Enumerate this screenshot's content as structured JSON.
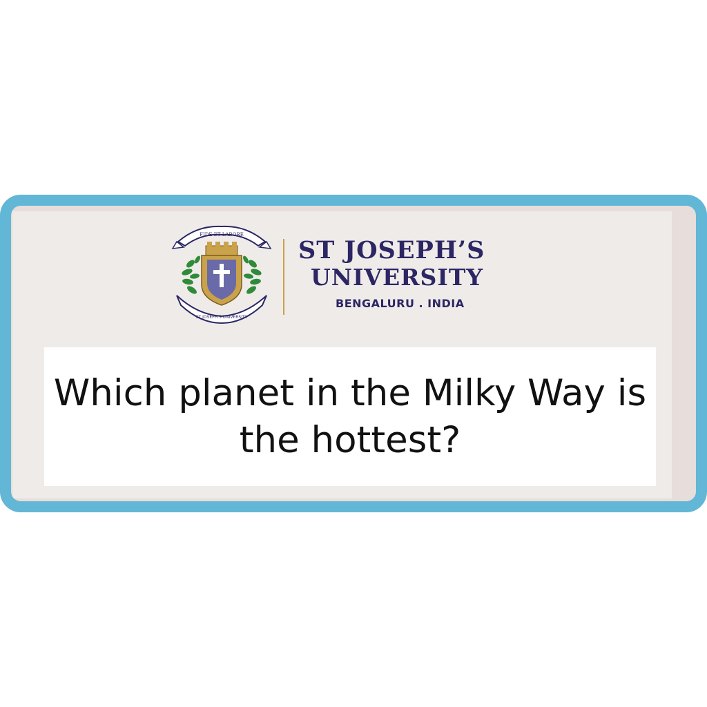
{
  "branding": {
    "name_line1": "ST JOSEPH’S",
    "name_line2": "UNIVERSITY",
    "location": "BENGALURU . INDIA",
    "crest_motto": "FIDE ET LABORE",
    "crest_banner": "ST JOSEPH'S UNIVERSITY",
    "crest_icon": "university-crest-icon"
  },
  "question": {
    "text": "Which planet in the Milky Way is the hottest?"
  },
  "colors": {
    "frame_border": "#62b6d6",
    "panel_bg": "#efebe9",
    "brand_text": "#2c2664",
    "divider_gold": "#c9a24a"
  }
}
